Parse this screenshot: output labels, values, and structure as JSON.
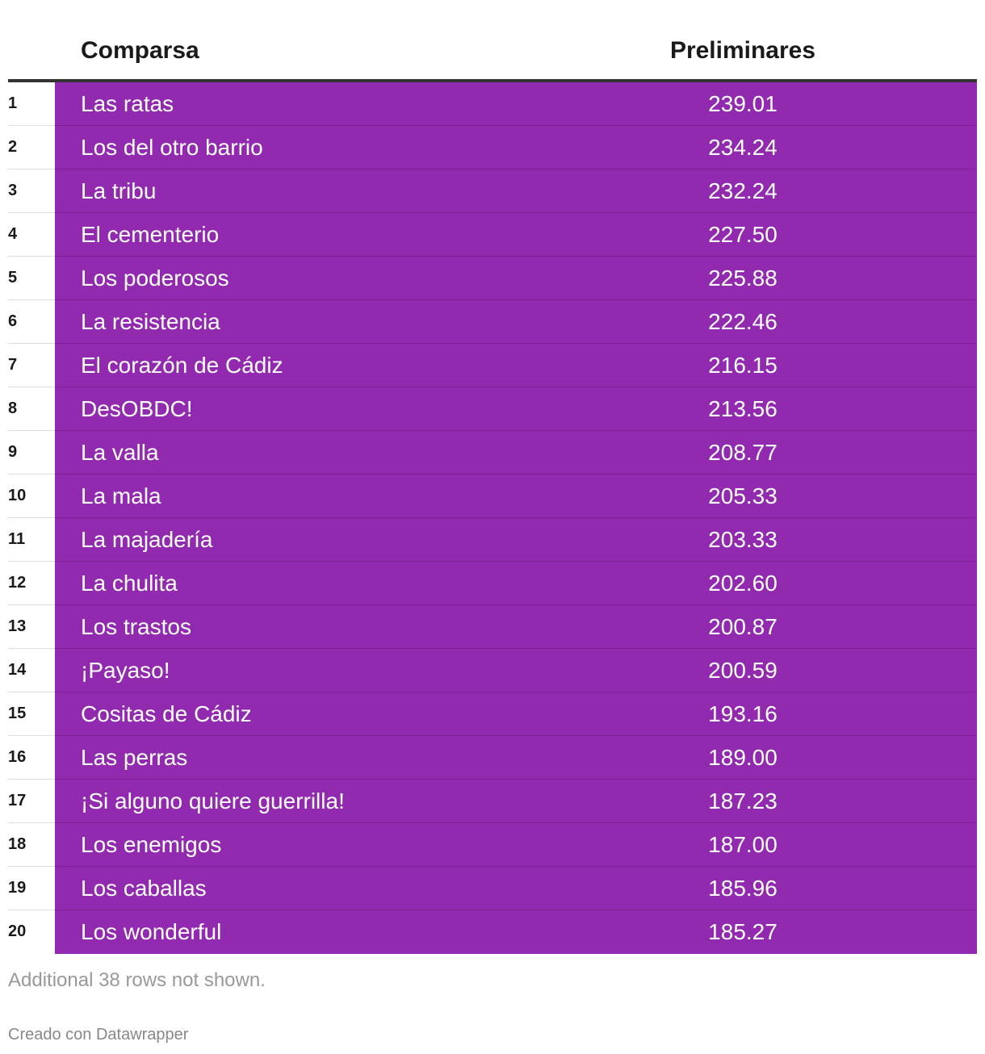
{
  "chart_data": {
    "type": "table",
    "columns": [
      "",
      "Comparsa",
      "Preliminares"
    ],
    "rows": [
      {
        "rank": "1",
        "name": "Las ratas",
        "value": "239.01"
      },
      {
        "rank": "2",
        "name": "Los del otro barrio",
        "value": "234.24"
      },
      {
        "rank": "3",
        "name": "La tribu",
        "value": "232.24"
      },
      {
        "rank": "4",
        "name": "El cementerio",
        "value": "227.50"
      },
      {
        "rank": "5",
        "name": "Los poderosos",
        "value": "225.88"
      },
      {
        "rank": "6",
        "name": "La resistencia",
        "value": "222.46"
      },
      {
        "rank": "7",
        "name": "El corazón de Cádiz",
        "value": "216.15"
      },
      {
        "rank": "8",
        "name": "DesOBDC!",
        "value": "213.56"
      },
      {
        "rank": "9",
        "name": "La valla",
        "value": "208.77"
      },
      {
        "rank": "10",
        "name": "La mala",
        "value": "205.33"
      },
      {
        "rank": "11",
        "name": "La majadería",
        "value": "203.33"
      },
      {
        "rank": "12",
        "name": "La chulita",
        "value": "202.60"
      },
      {
        "rank": "13",
        "name": "Los trastos",
        "value": "200.87"
      },
      {
        "rank": "14",
        "name": "¡Payaso!",
        "value": "200.59"
      },
      {
        "rank": "15",
        "name": "Cositas de Cádiz",
        "value": "193.16"
      },
      {
        "rank": "16",
        "name": "Las perras",
        "value": "189.00"
      },
      {
        "rank": "17",
        "name": "¡Si alguno quiere guerrilla!",
        "value": "187.23"
      },
      {
        "rank": "18",
        "name": "Los enemigos",
        "value": "187.00"
      },
      {
        "rank": "19",
        "name": "Los caballas",
        "value": "185.96"
      },
      {
        "rank": "20",
        "name": "Los wonderful",
        "value": "185.27"
      }
    ],
    "highlight_color": "#922ab0"
  },
  "header": {
    "name_label": "Comparsa",
    "value_label": "Preliminares"
  },
  "footer": {
    "note": "Additional 38 rows not shown.",
    "credit": "Creado con Datawrapper"
  }
}
